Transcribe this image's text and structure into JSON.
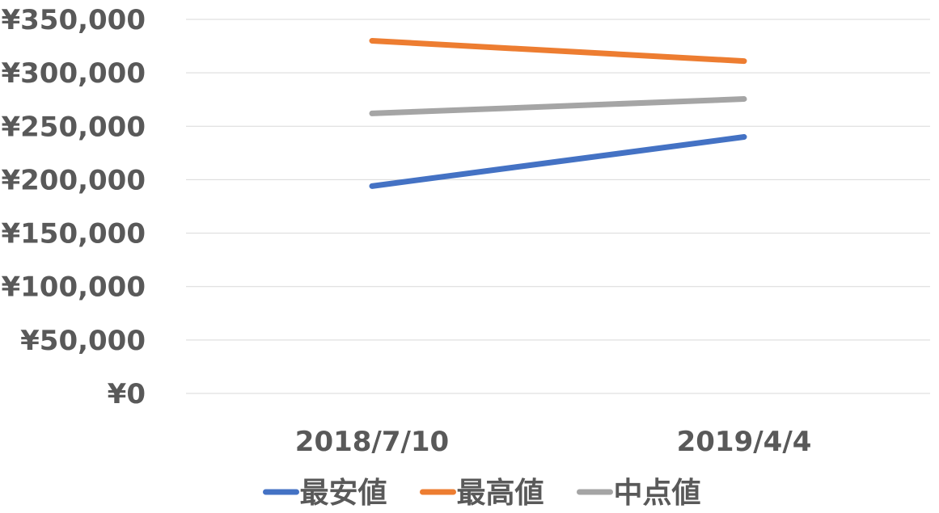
{
  "chart_data": {
    "type": "line",
    "title": "",
    "xlabel": "",
    "ylabel": "",
    "categories": [
      "2018/7/10",
      "2019/4/4"
    ],
    "ylim": [
      0,
      350000
    ],
    "y_tick_step": 50000,
    "y_tick_labels": [
      "¥0",
      "¥50,000",
      "¥100,000",
      "¥150,000",
      "¥200,000",
      "¥250,000",
      "¥300,000",
      "¥350,000"
    ],
    "grid": true,
    "legend_position": "bottom",
    "series": [
      {
        "name": "最安値",
        "color": "#4472c4",
        "values": [
          194000,
          240000
        ]
      },
      {
        "name": "最高値",
        "color": "#ed7d31",
        "values": [
          330000,
          311000
        ]
      },
      {
        "name": "中点値",
        "color": "#a5a5a5",
        "values": [
          262000,
          275500
        ]
      }
    ]
  }
}
